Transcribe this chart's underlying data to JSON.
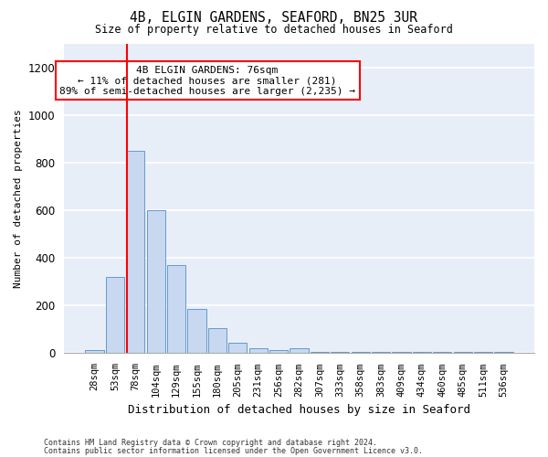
{
  "title1": "4B, ELGIN GARDENS, SEAFORD, BN25 3UR",
  "title2": "Size of property relative to detached houses in Seaford",
  "xlabel": "Distribution of detached houses by size in Seaford",
  "ylabel": "Number of detached properties",
  "footer1": "Contains HM Land Registry data © Crown copyright and database right 2024.",
  "footer2": "Contains public sector information licensed under the Open Government Licence v3.0.",
  "bar_labels": [
    "28sqm",
    "53sqm",
    "78sqm",
    "104sqm",
    "129sqm",
    "155sqm",
    "180sqm",
    "205sqm",
    "231sqm",
    "256sqm",
    "282sqm",
    "307sqm",
    "333sqm",
    "358sqm",
    "383sqm",
    "409sqm",
    "434sqm",
    "460sqm",
    "485sqm",
    "511sqm",
    "536sqm"
  ],
  "bar_values": [
    15,
    320,
    850,
    600,
    370,
    185,
    105,
    45,
    20,
    15,
    20,
    5,
    5,
    5,
    5,
    5,
    5,
    5,
    5,
    5,
    5
  ],
  "bar_color": "#c8d8f0",
  "bar_edge_color": "#6699cc",
  "annotation_text": "4B ELGIN GARDENS: 76sqm\n← 11% of detached houses are smaller (281)\n89% of semi-detached houses are larger (2,235) →",
  "annotation_box_color": "white",
  "annotation_box_edge_color": "red",
  "red_line_color": "red",
  "ylim": [
    0,
    1300
  ],
  "yticks": [
    0,
    200,
    400,
    600,
    800,
    1000,
    1200
  ],
  "bg_color": "#ffffff",
  "plot_bg_color": "#e8eef8"
}
